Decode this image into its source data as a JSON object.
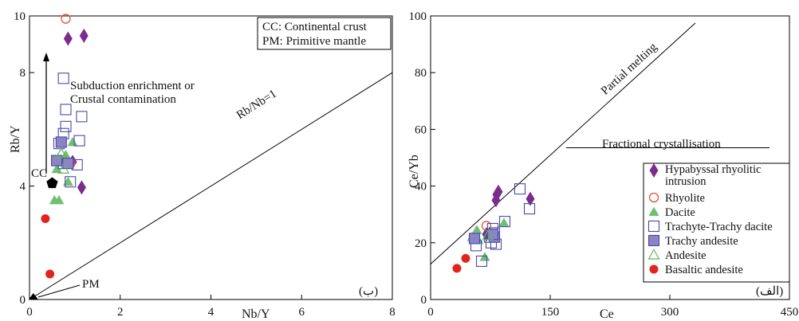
{
  "colors": {
    "hypabyssal": "#7b2d8e",
    "rhyolite": "#e8502e",
    "dacite": "#6fbf73",
    "trachyte": "#4a4aa6",
    "trachy_andesite_fill": "#8c84c6",
    "andesite": "#5cb85c",
    "basaltic": "#e0261c"
  },
  "chart_data": [
    {
      "type": "scatter",
      "panel_tag": "(ب)",
      "xlabel": "Nb/Y",
      "ylabel": "Rb/Y",
      "xlim": [
        0,
        8
      ],
      "ylim": [
        0,
        10
      ],
      "xticks": [
        0,
        2,
        4,
        6,
        8
      ],
      "yticks": [
        0,
        4,
        8,
        10
      ],
      "legend_box": [
        "CC: Continental crust",
        "PM: Primitive mantle"
      ],
      "reference_line": {
        "label": "Rb/Nb=1",
        "from": [
          0,
          0
        ],
        "to": [
          8,
          8
        ]
      },
      "arrow_note": [
        "Subduction enrichment or",
        "Crustal contamination"
      ],
      "reference_points": [
        {
          "label": "CC",
          "x": 0.5,
          "y": 4.1
        },
        {
          "label": "PM",
          "x": 0.05,
          "y": 0
        }
      ],
      "series": [
        {
          "id": "hypabyssal",
          "points": [
            [
              0.85,
              9.2
            ],
            [
              1.2,
              9.3
            ],
            [
              0.95,
              4.85
            ],
            [
              1.15,
              3.95
            ]
          ]
        },
        {
          "id": "rhyolite",
          "points": [
            [
              0.8,
              9.9
            ],
            [
              0.9,
              4.8
            ]
          ]
        },
        {
          "id": "dacite",
          "points": [
            [
              0.55,
              3.5
            ],
            [
              0.65,
              3.5
            ],
            [
              0.6,
              4.6
            ],
            [
              0.85,
              4.15
            ],
            [
              0.95,
              5.55
            ],
            [
              0.8,
              5.1
            ]
          ]
        },
        {
          "id": "trachyte",
          "points": [
            [
              0.75,
              7.8
            ],
            [
              0.8,
              6.7
            ],
            [
              1.15,
              6.45
            ],
            [
              0.8,
              6.1
            ],
            [
              0.75,
              5.85
            ],
            [
              1.1,
              5.6
            ],
            [
              0.65,
              5.5
            ],
            [
              0.6,
              4.9
            ],
            [
              0.75,
              4.8
            ],
            [
              1.05,
              4.75
            ],
            [
              0.9,
              4.15
            ]
          ]
        },
        {
          "id": "trachy_andesite",
          "points": [
            [
              0.7,
              5.55
            ],
            [
              0.6,
              4.9
            ],
            [
              0.85,
              4.8
            ]
          ]
        },
        {
          "id": "andesite",
          "points": [
            [
              0.7,
              5.15
            ],
            [
              0.75,
              4.6
            ]
          ]
        },
        {
          "id": "basaltic",
          "points": [
            [
              0.35,
              2.85
            ],
            [
              0.45,
              0.9
            ]
          ]
        }
      ]
    },
    {
      "type": "scatter",
      "panel_tag": "(الف)",
      "xlabel": "Ce",
      "ylabel": "Ce/Yb",
      "xlim": [
        0,
        450
      ],
      "ylim": [
        0,
        100
      ],
      "xticks": [
        0,
        150,
        300,
        450
      ],
      "yticks": [
        0,
        20,
        40,
        60,
        80,
        100
      ],
      "trend_lines": [
        {
          "label": "Partial melting",
          "from": [
            0,
            12.5
          ],
          "to": [
            332,
            97.5
          ]
        },
        {
          "label": "Fractional crystallisation",
          "from": [
            170,
            53.5
          ],
          "to": [
            425,
            53.5
          ]
        }
      ],
      "series": [
        {
          "id": "hypabyssal",
          "name": "Hypabyssal rhyolitic intrusion",
          "points": [
            [
              83,
              37
            ],
            [
              85,
              38
            ],
            [
              82,
              35
            ],
            [
              125,
              35.5
            ],
            [
              70,
              23
            ]
          ]
        },
        {
          "id": "rhyolite",
          "name": "Rhyolite",
          "points": [
            [
              70,
              26
            ]
          ]
        },
        {
          "id": "dacite",
          "name": "Dacite",
          "points": [
            [
              58,
              24.5
            ],
            [
              52,
              22
            ],
            [
              92,
              27
            ],
            [
              68,
              15
            ],
            [
              60,
              21
            ]
          ]
        },
        {
          "id": "trachyte",
          "name": "Trachyte-Trachy dacite",
          "points": [
            [
              112,
              39
            ],
            [
              124,
              32
            ],
            [
              93,
              27.5
            ],
            [
              78,
              25
            ],
            [
              80,
              23.5
            ],
            [
              74,
              22
            ],
            [
              76,
              20
            ],
            [
              82,
              19.5
            ],
            [
              64,
              13.5
            ],
            [
              57,
              19
            ]
          ]
        },
        {
          "id": "trachy_andesite",
          "name": "Trachy andesite",
          "points": [
            [
              55,
              21.5
            ],
            [
              80,
              22
            ],
            [
              78,
              23
            ]
          ]
        },
        {
          "id": "andesite",
          "name": "Andesite",
          "points": [
            [
              72,
              22.5
            ]
          ]
        },
        {
          "id": "basaltic",
          "name": "Basaltic andesite",
          "points": [
            [
              44,
              14.5
            ],
            [
              33,
              11
            ]
          ]
        }
      ]
    }
  ]
}
